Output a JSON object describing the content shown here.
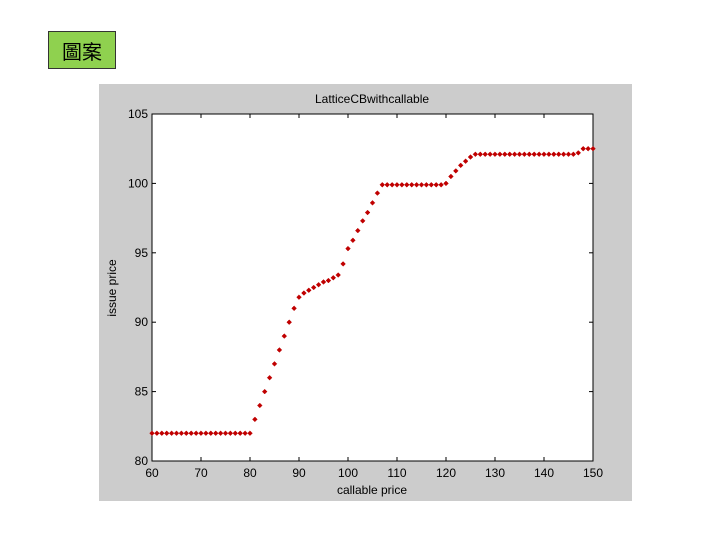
{
  "slide": {
    "label": "圖案"
  },
  "chart_data": {
    "type": "scatter",
    "title": "LatticeCBwithcallable",
    "xlabel": "callable price",
    "ylabel": "issue price",
    "xlim": [
      60,
      150
    ],
    "ylim": [
      80,
      105
    ],
    "xticks": [
      "60",
      "70",
      "80",
      "90",
      "100",
      "110",
      "120",
      "130",
      "140",
      "150"
    ],
    "yticks": [
      "80",
      "85",
      "90",
      "95",
      "100",
      "105"
    ],
    "grid": false,
    "marker_color": "#c00000",
    "series": [
      {
        "x": [
          60,
          61,
          62,
          63,
          64,
          65,
          66,
          67,
          68,
          69,
          70,
          71,
          72,
          73,
          74,
          75,
          76,
          77,
          78,
          79,
          80,
          81,
          82,
          83,
          84,
          85,
          86,
          87,
          88,
          89,
          90,
          91,
          92,
          93,
          94,
          95,
          96,
          97,
          98,
          99,
          100,
          101,
          102,
          103,
          104,
          105,
          106,
          107,
          108,
          109,
          110,
          111,
          112,
          113,
          114,
          115,
          116,
          117,
          118,
          119,
          120,
          121,
          122,
          123,
          124,
          125,
          126,
          127,
          128,
          129,
          130,
          131,
          132,
          133,
          134,
          135,
          136,
          137,
          138,
          139,
          140,
          141,
          142,
          143,
          144,
          145,
          146,
          147,
          148,
          149,
          150
        ],
        "y": [
          82.0,
          82.0,
          82.0,
          82.0,
          82.0,
          82.0,
          82.0,
          82.0,
          82.0,
          82.0,
          82.0,
          82.0,
          82.0,
          82.0,
          82.0,
          82.0,
          82.0,
          82.0,
          82.0,
          82.0,
          82.0,
          83.0,
          84.0,
          85.0,
          86.0,
          87.0,
          88.0,
          89.0,
          90.0,
          91.0,
          91.8,
          92.1,
          92.3,
          92.5,
          92.7,
          92.9,
          93.0,
          93.2,
          93.4,
          94.2,
          95.3,
          95.9,
          96.6,
          97.3,
          97.9,
          98.6,
          99.3,
          99.9,
          99.9,
          99.9,
          99.9,
          99.9,
          99.9,
          99.9,
          99.9,
          99.9,
          99.9,
          99.9,
          99.9,
          99.9,
          100.0,
          100.5,
          100.9,
          101.3,
          101.6,
          101.9,
          102.1,
          102.1,
          102.1,
          102.1,
          102.1,
          102.1,
          102.1,
          102.1,
          102.1,
          102.1,
          102.1,
          102.1,
          102.1,
          102.1,
          102.1,
          102.1,
          102.1,
          102.1,
          102.1,
          102.1,
          102.1,
          102.2,
          102.5,
          102.5,
          102.5
        ]
      }
    ]
  }
}
